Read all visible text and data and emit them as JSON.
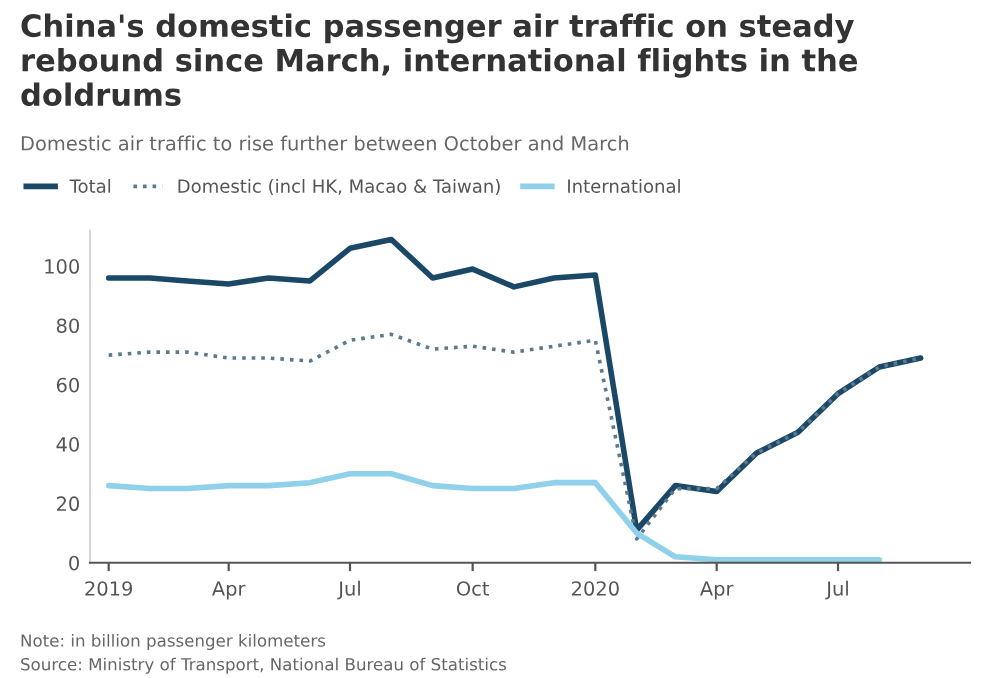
{
  "chart_data": {
    "type": "line",
    "title": "China's domestic passenger air traffic on steady rebound since March, international flights in the doldrums",
    "subtitle": "Domestic air traffic to rise further between October and March",
    "x": [
      "2019-01",
      "2019-02",
      "2019-03",
      "2019-04",
      "2019-05",
      "2019-06",
      "2019-07",
      "2019-08",
      "2019-09",
      "2019-10",
      "2019-11",
      "2019-12",
      "2020-01",
      "2020-02",
      "2020-03",
      "2020-04",
      "2020-05",
      "2020-06",
      "2020-07",
      "2020-08",
      "2020-09"
    ],
    "series": [
      {
        "name": "Total",
        "color": "#1b4866",
        "line_style": "solid",
        "values": [
          96,
          96,
          95,
          94,
          96,
          95,
          106,
          109,
          96,
          99,
          93,
          96,
          97,
          11,
          26,
          24,
          37,
          44,
          57,
          66,
          69
        ]
      },
      {
        "name": "Domestic (incl HK, Macao & Taiwan)",
        "color": "#5a7a90",
        "line_style": "dotted",
        "values": [
          70,
          71,
          71,
          69,
          69,
          68,
          75,
          77,
          72,
          73,
          71,
          73,
          75,
          8,
          25,
          25,
          37,
          44,
          57,
          66,
          69
        ]
      },
      {
        "name": "International",
        "color": "#8fd0ea",
        "line_style": "solid",
        "values": [
          26,
          25,
          25,
          26,
          26,
          27,
          30,
          30,
          26,
          25,
          25,
          27,
          27,
          10,
          2,
          1,
          1,
          1,
          1,
          1,
          null
        ]
      }
    ],
    "xlim": [
      "2018-12-18",
      "2020-10-08"
    ],
    "xticks": [
      {
        "value": "2019-01-01",
        "label": "2019"
      },
      {
        "value": "2019-04-01",
        "label": "Apr"
      },
      {
        "value": "2019-07-01",
        "label": "Jul"
      },
      {
        "value": "2019-10-01",
        "label": "Oct"
      },
      {
        "value": "2020-01-01",
        "label": "2020"
      },
      {
        "value": "2020-04-01",
        "label": "Apr"
      },
      {
        "value": "2020-07-01",
        "label": "Jul"
      }
    ],
    "ylim": [
      0,
      112
    ],
    "yticks": [
      0,
      20,
      40,
      60,
      80,
      100
    ],
    "grid": false,
    "legend": "top left",
    "marker": "none",
    "annotations": [
      "Note: in billion passenger kilometers",
      "Source: Ministry of Transport, National Bureau of Statistics"
    ]
  }
}
